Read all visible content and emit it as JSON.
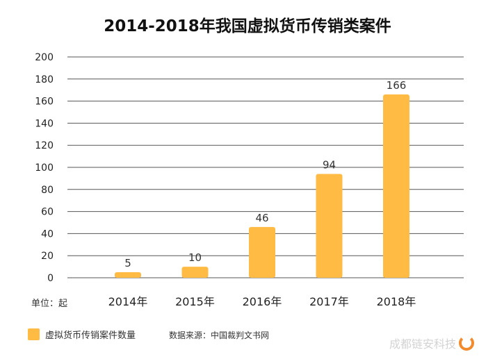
{
  "chart_data": {
    "type": "bar",
    "title": "2014-2018年我国虚拟货币传销类案件",
    "categories": [
      "2014年",
      "2015年",
      "2016年",
      "2017年",
      "2018年"
    ],
    "series": [
      {
        "name": "虚拟货币传销案件数量",
        "values": [
          5,
          10,
          46,
          94,
          166
        ]
      }
    ],
    "data_labels": [
      "5",
      "10",
      "46",
      "94",
      "166"
    ],
    "yticks": [
      0,
      20,
      40,
      60,
      80,
      100,
      120,
      140,
      160,
      180,
      200
    ],
    "ylim": [
      0,
      200
    ],
    "ylabel": "单位：起",
    "xlabel": "",
    "grid": true,
    "legend_position": "bottom-left",
    "bar_color": "#FFBB44"
  },
  "source_text": "数据来源：中国裁判文书网",
  "watermark_text": "成都链安科技",
  "watermark_icon": "circle-logo-icon"
}
